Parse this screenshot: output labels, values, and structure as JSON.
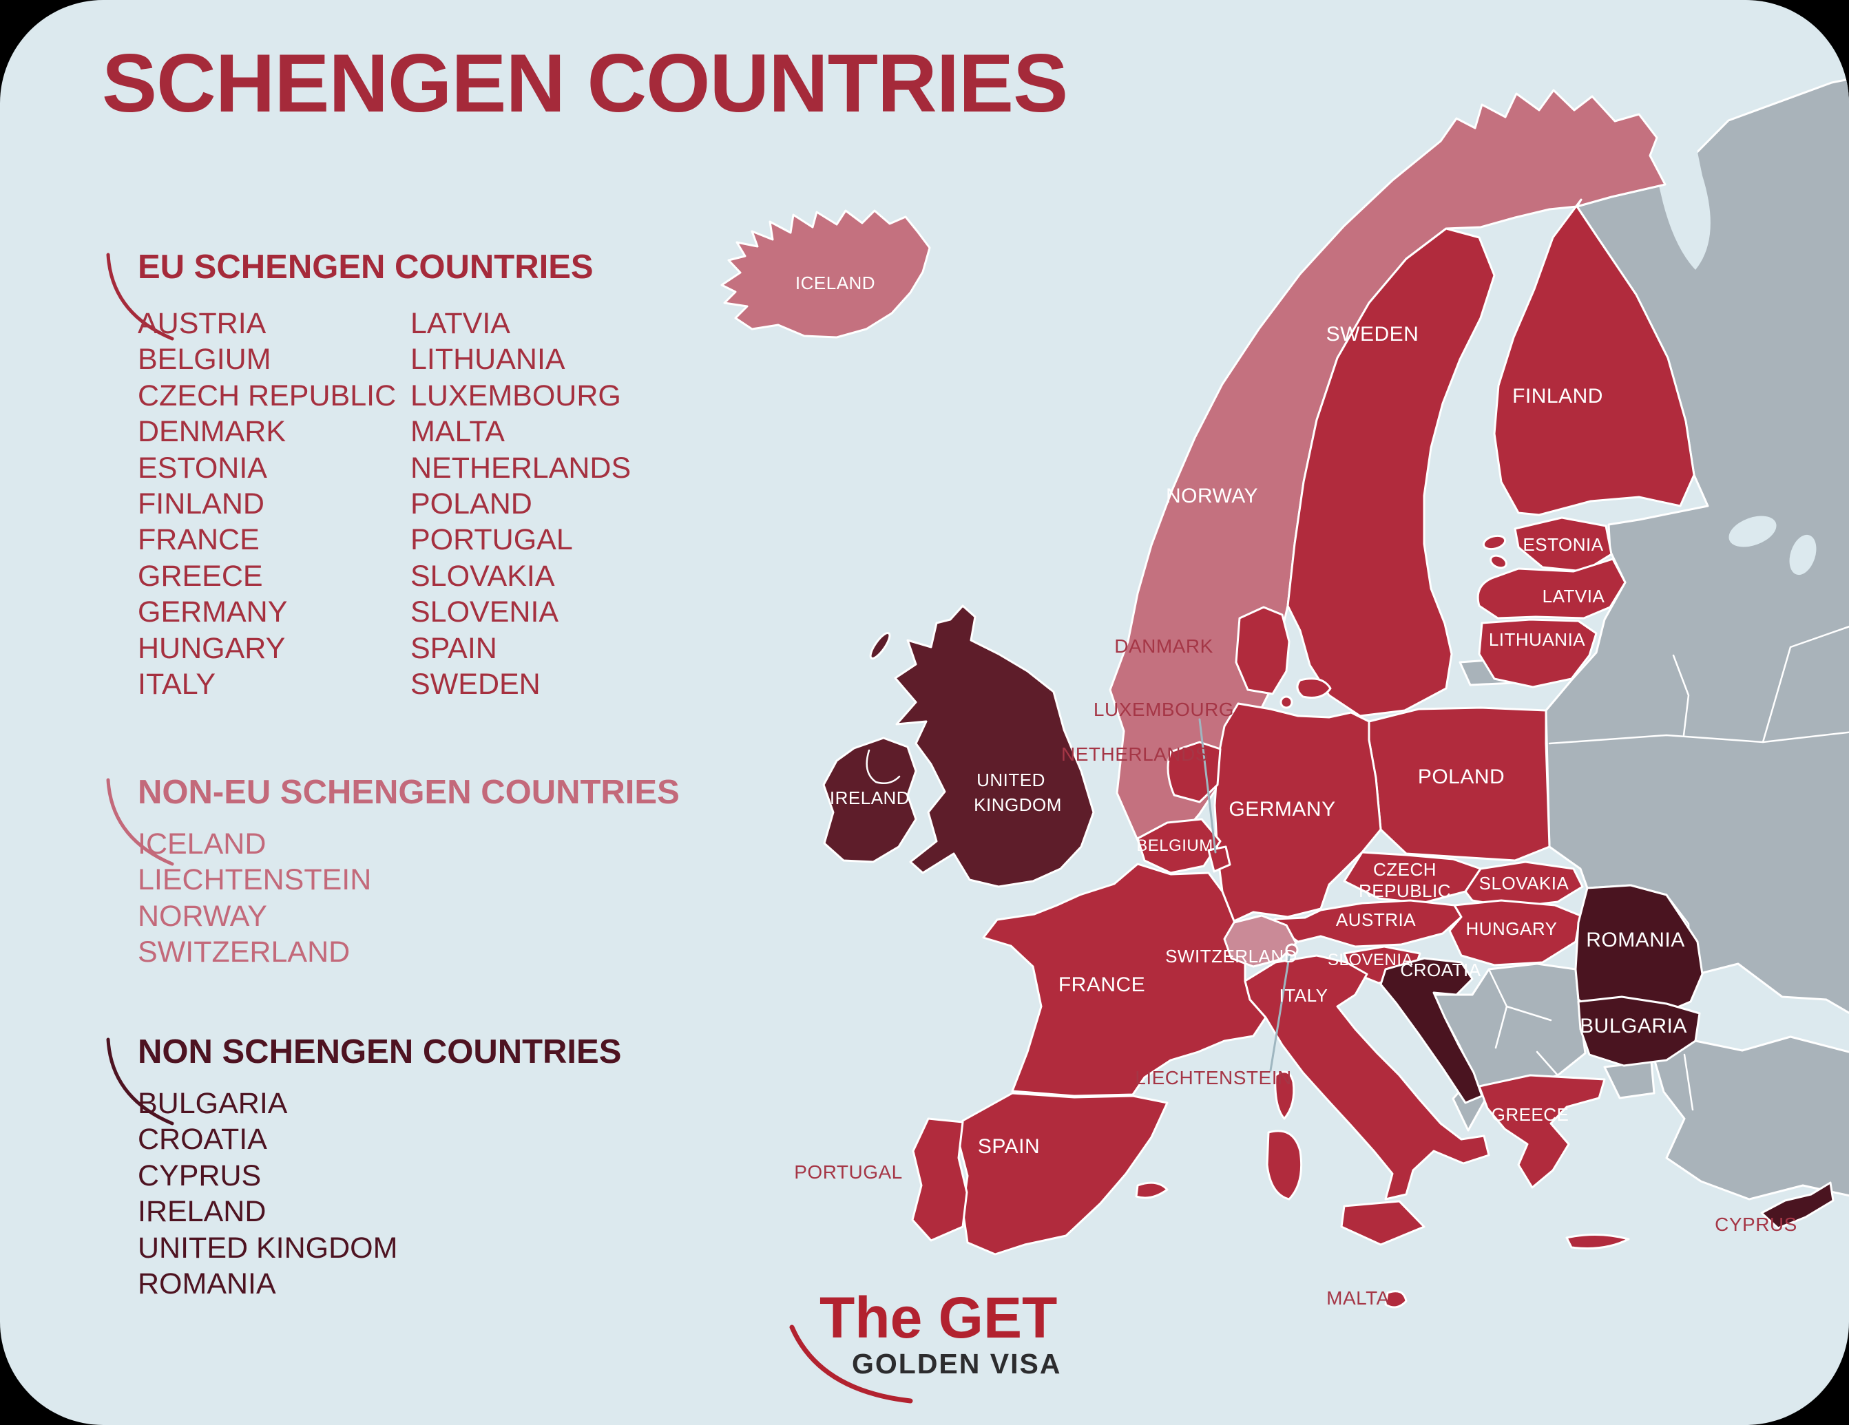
{
  "title": "SCHENGEN COUNTRIES",
  "sections": {
    "eu": {
      "heading": "EU SCHENGEN COUNTRIES",
      "col1": [
        "AUSTRIA",
        "BELGIUM",
        "CZECH REPUBLIC",
        "DENMARK",
        "ESTONIA",
        "FINLAND",
        "FRANCE",
        "GREECE",
        "GERMANY",
        "HUNGARY",
        "ITALY"
      ],
      "col2": [
        "LATVIA",
        "LITHUANIA",
        "LUXEMBOURG",
        "MALTA",
        "NETHERLANDS",
        "POLAND",
        "PORTUGAL",
        "SLOVAKIA",
        "SLOVENIA",
        "SPAIN",
        "SWEDEN"
      ]
    },
    "non_eu": {
      "heading": "NON-EU SCHENGEN COUNTRIES",
      "items": [
        "ICELAND",
        "LIECHTENSTEIN",
        "NORWAY",
        "SWITZERLAND"
      ]
    },
    "non_schengen": {
      "heading": "NON SCHENGEN COUNTRIES",
      "items": [
        "BULGARIA",
        "CROATIA",
        "CYPRUS",
        "IRELAND",
        "UNITED KINGDOM",
        "ROMANIA"
      ]
    }
  },
  "map_labels": {
    "iceland": "ICELAND",
    "norway": "NORWAY",
    "sweden": "SWEDEN",
    "finland": "FINLAND",
    "estonia": "ESTONIA",
    "latvia": "LATVIA",
    "lithuania": "LITHUANIA",
    "danmark": "DANMARK",
    "luxembourg": "LUXEMBOURG",
    "netherlands": "NETHERLANDS",
    "poland": "POLAND",
    "uk_line1": "UNITED",
    "uk_line2": "KINGDOM",
    "ireland": "IRELAND",
    "germany": "GERMANY",
    "belgium": "BELGIUM",
    "czech_line1": "CZECH",
    "czech_line2": "REPUBLIC",
    "slovakia": "SLOVAKIA",
    "austria": "AUSTRIA",
    "hungary": "HUNGARY",
    "romania": "ROMANIA",
    "switzerland": "SWITZERLAND",
    "slovenia": "SLOVENIA",
    "croatia": "CROATIA",
    "france": "FRANCE",
    "italy": "ITALY",
    "bulgaria": "BULGARIA",
    "liechtenstein": "LIECHTENSTEIN",
    "greece": "GREECE",
    "spain": "SPAIN",
    "portugal": "PORTUGAL",
    "cyprus": "CYPRUS",
    "malta": "MALTA"
  },
  "logo": {
    "line1": "The GET",
    "line2": "GOLDEN VISA"
  },
  "colors": {
    "background_sea": "#dce9ee",
    "eu_schengen_fill": "#b12b3d",
    "non_eu_schengen_fill": "#c4717f",
    "switzerland_fill": "#ca8a97",
    "uk_ireland_fill": "#5e1d2a",
    "non_schengen_fill": "#4a1420",
    "non_member_fill": "#a9b3ba",
    "heading_red": "#a52a3a",
    "heading_pink": "#c3697a",
    "heading_maroon": "#4e1321",
    "map_label_red": "#a53646",
    "logo_red": "#b2222f",
    "logo_dark": "#2c2c2e"
  }
}
